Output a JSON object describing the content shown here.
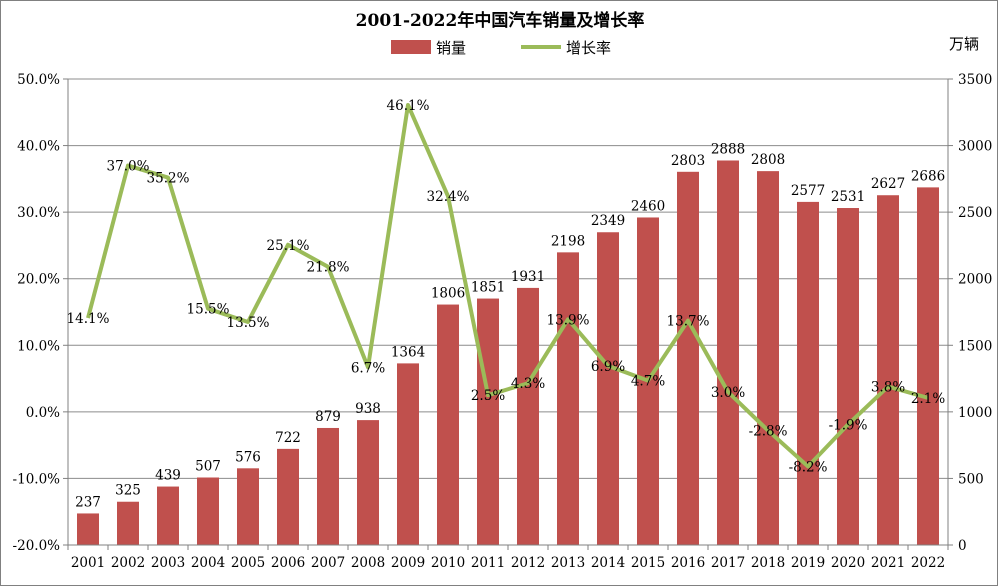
{
  "chart_data": {
    "type": "bar",
    "title": "2001-2022年中国汽车销量及增长率",
    "categories": [
      "2001",
      "2002",
      "2003",
      "2004",
      "2005",
      "2006",
      "2007",
      "2008",
      "2009",
      "2010",
      "2011",
      "2012",
      "2013",
      "2014",
      "2015",
      "2016",
      "2017",
      "2018",
      "2019",
      "2020",
      "2021",
      "2022"
    ],
    "series": [
      {
        "name": "销量",
        "chart_type": "bar",
        "axis": "right",
        "color": "#C0504D",
        "values": [
          237,
          325,
          439,
          507,
          576,
          722,
          879,
          938,
          1364,
          1806,
          1851,
          1931,
          2198,
          2349,
          2460,
          2803,
          2888,
          2808,
          2577,
          2531,
          2627,
          2686
        ],
        "labels": [
          "237",
          "325",
          "439",
          "507",
          "576",
          "722",
          "879",
          "938",
          "1364",
          "1806",
          "1851",
          "1931",
          "2198",
          "2349",
          "2460",
          "2803",
          "2888",
          "2808",
          "2577",
          "2531",
          "2627",
          "2686"
        ]
      },
      {
        "name": "增长率",
        "chart_type": "line",
        "axis": "left",
        "color": "#9BBB59",
        "values": [
          14.1,
          37.0,
          35.2,
          15.5,
          13.5,
          25.1,
          21.8,
          6.7,
          46.1,
          32.4,
          2.5,
          4.3,
          13.9,
          6.9,
          4.7,
          13.7,
          3.0,
          -2.8,
          -8.2,
          -1.9,
          3.8,
          2.1
        ],
        "labels": [
          "14.1%",
          "37.0%",
          "35.2%",
          "15.5%",
          "13.5%",
          "25.1%",
          "21.8%",
          "6.7%",
          "46.1%",
          "32.4%",
          "2.5%",
          "4.3%",
          "13.9%",
          "6.9%",
          "4.7%",
          "13.7%",
          "3.0%",
          "-2.8%",
          "-8.2%",
          "-1.9%",
          "3.8%",
          "2.1%"
        ]
      }
    ],
    "y_left": {
      "range": [
        -20,
        50
      ],
      "ticks": [
        50,
        40,
        30,
        20,
        10,
        0,
        -10,
        -20
      ],
      "tick_labels": [
        "50.0%",
        "40.0%",
        "30.0%",
        "20.0%",
        "10.0%",
        "0.0%",
        "-10.0%",
        "-20.0%"
      ]
    },
    "y_right": {
      "unit": "万辆",
      "range": [
        0,
        3500
      ],
      "ticks": [
        3500,
        3000,
        2500,
        2000,
        1500,
        1000,
        500,
        0
      ],
      "tick_labels": [
        "3500",
        "3000",
        "2500",
        "2000",
        "1500",
        "1000",
        "500",
        "0"
      ]
    },
    "grid": true,
    "legend_position": "top-center"
  }
}
